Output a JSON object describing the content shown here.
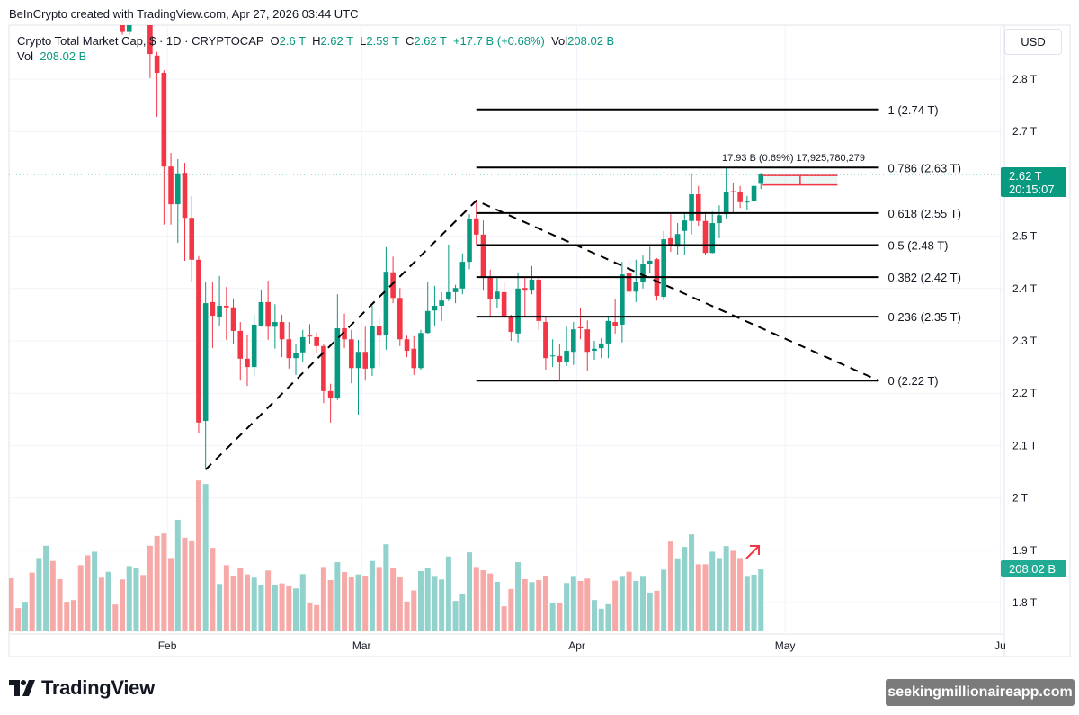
{
  "header": {
    "credit": "BeInCrypto created with TradingView.com, Apr 27, 2026 03:44 UTC"
  },
  "legend": {
    "symbol": "Crypto Total Market Cap, $ · 1D · CRYPTOCAP",
    "o_label": "O",
    "o": "2.6 T",
    "h_label": "H",
    "h": "2.62 T",
    "l_label": "L",
    "l": "2.59 T",
    "c_label": "C",
    "c": "2.62 T",
    "change": "+17.7 B (+0.68%)",
    "vol_label": "Vol",
    "vol": "208.02 B",
    "vol_row_label": "Vol",
    "vol_row_value": "208.02 B"
  },
  "currency": "USD",
  "last_price": {
    "price": "2.62 T",
    "countdown": "20:15:07"
  },
  "last_volume": "208.02 B",
  "measure_annotation": "17.93 B (0.69%) 17,925,780,279",
  "branding": {
    "logo": "TradingView",
    "watermark": "seekingmillionaireapp.com"
  },
  "colors": {
    "up": "#089981",
    "down": "#f23645",
    "vol_up": "#92d2cc",
    "vol_down": "#f7a9a7",
    "grid": "#f0f3fa",
    "fib": "#000000"
  },
  "chart_data": {
    "type": "candlestick",
    "interval": "1D",
    "price_unit": "T",
    "volume_unit": "B",
    "ylim": [
      1.76,
      2.93
    ],
    "grid": true,
    "y_ticks": [
      {
        "label": "2.8 T",
        "value": 2.8
      },
      {
        "label": "2.7 T",
        "value": 2.7
      },
      {
        "label": "2.5 T",
        "value": 2.5
      },
      {
        "label": "2.4 T",
        "value": 2.4
      },
      {
        "label": "2.3 T",
        "value": 2.3
      },
      {
        "label": "2.2 T",
        "value": 2.2
      },
      {
        "label": "2.1 T",
        "value": 2.1
      },
      {
        "label": "2 T",
        "value": 2.0
      },
      {
        "label": "1.9 T",
        "value": 1.9
      },
      {
        "label": "1.8 T",
        "value": 1.8
      }
    ],
    "x_ticks": [
      {
        "label": "Feb",
        "date": "2026-02-01"
      },
      {
        "label": "Mar",
        "date": "2026-03-01"
      },
      {
        "label": "Apr",
        "date": "2026-04-01"
      },
      {
        "label": "May",
        "date": "2026-05-01"
      },
      {
        "label": "Ju",
        "date": "2026-06-01"
      }
    ],
    "columns": [
      "date",
      "open",
      "high",
      "low",
      "close",
      "volume",
      "direction_if_offscreen"
    ],
    "candles": [
      [
        "2026-01-09",
        null,
        null,
        null,
        null,
        178,
        "down"
      ],
      [
        "2026-01-10",
        null,
        null,
        null,
        null,
        78,
        "down"
      ],
      [
        "2026-01-11",
        null,
        null,
        null,
        null,
        99,
        "up"
      ],
      [
        "2026-01-12",
        null,
        null,
        null,
        null,
        197,
        "down"
      ],
      [
        "2026-01-13",
        null,
        null,
        null,
        null,
        246,
        "up"
      ],
      [
        "2026-01-14",
        null,
        null,
        null,
        null,
        287,
        "up"
      ],
      [
        "2026-01-15",
        null,
        null,
        null,
        null,
        236,
        "down"
      ],
      [
        "2026-01-16",
        null,
        null,
        null,
        null,
        175,
        "down"
      ],
      [
        "2026-01-17",
        null,
        null,
        null,
        null,
        99,
        "down"
      ],
      [
        "2026-01-18",
        null,
        null,
        null,
        null,
        105,
        "down"
      ],
      [
        "2026-01-19",
        null,
        null,
        null,
        null,
        222,
        "down"
      ],
      [
        "2026-01-20",
        null,
        null,
        null,
        null,
        255,
        "down"
      ],
      [
        "2026-01-21",
        null,
        null,
        null,
        null,
        267,
        "up"
      ],
      [
        "2026-01-22",
        null,
        null,
        null,
        null,
        180,
        "down"
      ],
      [
        "2026-01-23",
        null,
        null,
        null,
        null,
        200,
        "up"
      ],
      [
        "2026-01-24",
        null,
        null,
        null,
        null,
        90,
        "down"
      ],
      [
        "2026-01-25",
        2.93,
        2.95,
        2.885,
        2.89,
        174
      ],
      [
        "2026-01-26",
        2.89,
        2.95,
        2.885,
        2.93,
        219
      ],
      [
        "2026-01-27",
        2.93,
        2.99,
        2.91,
        2.97,
        212
      ],
      [
        "2026-01-28",
        2.97,
        2.99,
        2.91,
        2.93,
        189
      ],
      [
        "2026-01-29",
        2.93,
        2.94,
        2.802,
        2.848,
        287
      ],
      [
        "2026-01-30",
        2.845,
        2.852,
        2.728,
        2.812,
        320
      ],
      [
        "2026-01-31",
        2.812,
        2.817,
        2.522,
        2.633,
        328
      ],
      [
        "2026-02-01",
        2.633,
        2.659,
        2.522,
        2.561,
        246
      ],
      [
        "2026-02-02",
        2.561,
        2.647,
        2.487,
        2.62,
        374
      ],
      [
        "2026-02-03",
        2.621,
        2.64,
        2.453,
        2.535,
        314
      ],
      [
        "2026-02-04",
        2.535,
        2.577,
        2.413,
        2.455,
        305
      ],
      [
        "2026-02-05",
        2.455,
        2.462,
        2.123,
        2.144,
        506
      ],
      [
        "2026-02-06",
        2.147,
        2.413,
        2.055,
        2.372,
        494
      ],
      [
        "2026-02-07",
        2.374,
        2.412,
        2.286,
        2.348,
        280
      ],
      [
        "2026-02-08",
        2.346,
        2.424,
        2.329,
        2.367,
        159
      ],
      [
        "2026-02-09",
        2.367,
        2.403,
        2.302,
        2.364,
        222
      ],
      [
        "2026-02-10",
        2.364,
        2.381,
        2.293,
        2.319,
        187
      ],
      [
        "2026-02-11",
        2.319,
        2.336,
        2.224,
        2.266,
        213
      ],
      [
        "2026-02-12",
        2.266,
        2.312,
        2.214,
        2.25,
        191
      ],
      [
        "2026-02-13",
        2.25,
        2.35,
        2.233,
        2.331,
        180
      ],
      [
        "2026-02-14",
        2.329,
        2.398,
        2.327,
        2.374,
        155
      ],
      [
        "2026-02-15",
        2.374,
        2.415,
        2.302,
        2.327,
        204
      ],
      [
        "2026-02-16",
        2.327,
        2.37,
        2.285,
        2.336,
        157
      ],
      [
        "2026-02-17",
        2.336,
        2.35,
        2.269,
        2.303,
        161
      ],
      [
        "2026-02-18",
        2.303,
        2.336,
        2.247,
        2.267,
        151
      ],
      [
        "2026-02-19",
        2.267,
        2.293,
        2.235,
        2.276,
        144
      ],
      [
        "2026-02-20",
        2.278,
        2.321,
        2.259,
        2.307,
        192
      ],
      [
        "2026-02-21",
        2.31,
        2.332,
        2.293,
        2.309,
        96
      ],
      [
        "2026-02-22",
        2.307,
        2.316,
        2.276,
        2.29,
        88
      ],
      [
        "2026-02-23",
        2.29,
        2.295,
        2.181,
        2.204,
        216
      ],
      [
        "2026-02-24",
        2.204,
        2.218,
        2.144,
        2.19,
        172
      ],
      [
        "2026-02-25",
        2.19,
        2.389,
        2.187,
        2.324,
        232
      ],
      [
        "2026-02-26",
        2.324,
        2.352,
        2.286,
        2.303,
        199
      ],
      [
        "2026-02-27",
        2.303,
        2.321,
        2.219,
        2.248,
        181
      ],
      [
        "2026-02-28",
        2.248,
        2.302,
        2.159,
        2.279,
        191
      ],
      [
        "2026-03-01",
        2.279,
        2.327,
        2.224,
        2.247,
        185
      ],
      [
        "2026-03-02",
        2.248,
        2.367,
        2.233,
        2.329,
        236
      ],
      [
        "2026-03-03",
        2.329,
        2.345,
        2.252,
        2.31,
        216
      ],
      [
        "2026-03-04",
        2.312,
        2.479,
        2.283,
        2.432,
        292
      ],
      [
        "2026-03-05",
        2.431,
        2.461,
        2.372,
        2.382,
        212
      ],
      [
        "2026-03-06",
        2.382,
        2.401,
        2.29,
        2.303,
        181
      ],
      [
        "2026-03-07",
        2.303,
        2.31,
        2.269,
        2.281,
        100
      ],
      [
        "2026-03-08",
        2.285,
        2.309,
        2.235,
        2.248,
        137
      ],
      [
        "2026-03-09",
        2.248,
        2.321,
        2.245,
        2.315,
        202
      ],
      [
        "2026-03-10",
        2.315,
        2.412,
        2.314,
        2.357,
        214
      ],
      [
        "2026-03-11",
        2.358,
        2.405,
        2.329,
        2.367,
        183
      ],
      [
        "2026-03-12",
        2.367,
        2.393,
        2.338,
        2.377,
        174
      ],
      [
        "2026-03-13",
        2.379,
        2.484,
        2.376,
        2.393,
        251
      ],
      [
        "2026-03-14",
        2.393,
        2.407,
        2.372,
        2.401,
        102
      ],
      [
        "2026-03-15",
        2.4,
        2.467,
        2.389,
        2.451,
        126
      ],
      [
        "2026-03-16",
        2.451,
        2.542,
        2.437,
        2.532,
        265
      ],
      [
        "2026-03-17",
        2.534,
        2.568,
        2.484,
        2.503,
        216
      ],
      [
        "2026-03-18",
        2.503,
        2.53,
        2.396,
        2.422,
        205
      ],
      [
        "2026-03-19",
        2.422,
        2.436,
        2.346,
        2.379,
        194
      ],
      [
        "2026-03-20",
        2.379,
        2.42,
        2.362,
        2.394,
        166
      ],
      [
        "2026-03-21",
        2.393,
        2.412,
        2.343,
        2.346,
        84
      ],
      [
        "2026-03-22",
        2.346,
        2.35,
        2.3,
        2.317,
        142
      ],
      [
        "2026-03-23",
        2.314,
        2.431,
        2.297,
        2.4,
        232
      ],
      [
        "2026-03-24",
        2.401,
        2.422,
        2.346,
        2.396,
        175
      ],
      [
        "2026-03-25",
        2.396,
        2.443,
        2.389,
        2.417,
        165
      ],
      [
        "2026-03-26",
        2.417,
        2.422,
        2.321,
        2.338,
        172
      ],
      [
        "2026-03-27",
        2.336,
        2.346,
        2.245,
        2.267,
        186
      ],
      [
        "2026-03-28",
        2.271,
        2.303,
        2.25,
        2.272,
        96
      ],
      [
        "2026-03-29",
        2.271,
        2.293,
        2.224,
        2.259,
        94
      ],
      [
        "2026-03-30",
        2.259,
        2.327,
        2.252,
        2.281,
        162
      ],
      [
        "2026-03-31",
        2.279,
        2.336,
        2.254,
        2.322,
        183
      ],
      [
        "2026-04-01",
        2.326,
        2.362,
        2.303,
        2.324,
        169
      ],
      [
        "2026-04-02",
        2.322,
        2.339,
        2.243,
        2.279,
        177
      ],
      [
        "2026-04-03",
        2.281,
        2.3,
        2.264,
        2.285,
        105
      ],
      [
        "2026-04-04",
        2.286,
        2.305,
        2.267,
        2.295,
        76
      ],
      [
        "2026-04-05",
        2.295,
        2.345,
        2.267,
        2.338,
        91
      ],
      [
        "2026-04-06",
        2.336,
        2.379,
        2.314,
        2.329,
        170
      ],
      [
        "2026-04-07",
        2.331,
        2.451,
        2.297,
        2.427,
        183
      ],
      [
        "2026-04-08",
        2.429,
        2.455,
        2.384,
        2.394,
        200
      ],
      [
        "2026-04-09",
        2.394,
        2.455,
        2.374,
        2.413,
        169
      ],
      [
        "2026-04-10",
        2.413,
        2.463,
        2.4,
        2.446,
        183
      ],
      [
        "2026-04-11",
        2.446,
        2.48,
        2.429,
        2.453,
        130
      ],
      [
        "2026-04-12",
        2.456,
        2.458,
        2.377,
        2.386,
        136
      ],
      [
        "2026-04-13",
        2.384,
        2.51,
        2.377,
        2.494,
        207
      ],
      [
        "2026-04-14",
        2.496,
        2.542,
        2.47,
        2.482,
        301
      ],
      [
        "2026-04-15",
        2.48,
        2.525,
        2.465,
        2.504,
        245
      ],
      [
        "2026-04-16",
        2.51,
        2.544,
        2.465,
        2.53,
        283
      ],
      [
        "2026-04-17",
        2.529,
        2.62,
        2.503,
        2.58,
        325
      ],
      [
        "2026-04-18",
        2.58,
        2.596,
        2.52,
        2.529,
        225
      ],
      [
        "2026-04-19",
        2.529,
        2.546,
        2.465,
        2.468,
        225
      ],
      [
        "2026-04-20",
        2.468,
        2.547,
        2.467,
        2.525,
        267
      ],
      [
        "2026-04-21",
        2.525,
        2.559,
        2.496,
        2.54,
        246
      ],
      [
        "2026-04-22",
        2.542,
        2.63,
        2.534,
        2.585,
        286
      ],
      [
        "2026-04-23",
        2.586,
        2.601,
        2.544,
        2.584,
        270
      ],
      [
        "2026-04-24",
        2.584,
        2.596,
        2.554,
        2.565,
        246
      ],
      [
        "2026-04-25",
        2.565,
        2.577,
        2.551,
        2.566,
        183
      ],
      [
        "2026-04-26",
        2.568,
        2.608,
        2.558,
        2.596,
        190
      ],
      [
        "2026-04-27",
        2.6,
        2.621,
        2.59,
        2.618,
        208.02
      ]
    ],
    "last_close": 2.618,
    "fibonacci": {
      "start_date": "2026-03-17",
      "end_date": "2026-05-14",
      "low": 2.224,
      "high": 2.742,
      "levels": [
        {
          "ratio": 1,
          "label": "1 (2.74 T)"
        },
        {
          "ratio": 0.786,
          "label": "0.786 (2.63 T)"
        },
        {
          "ratio": 0.618,
          "label": "0.618 (2.55 T)"
        },
        {
          "ratio": 0.5,
          "label": "0.5 (2.48 T)"
        },
        {
          "ratio": 0.382,
          "label": "0.382 (2.42 T)"
        },
        {
          "ratio": 0.236,
          "label": "0.236 (2.35 T)"
        },
        {
          "ratio": 0,
          "label": "0 (2.22 T)"
        }
      ]
    },
    "trend_path": [
      {
        "date": "2026-02-06",
        "price": 2.054
      },
      {
        "date": "2026-03-17",
        "price": 2.568
      },
      {
        "date": "2026-05-14",
        "price": 2.224
      }
    ],
    "range_box": {
      "start_date": "2026-04-27",
      "end_date": "2026-05-07",
      "top": 2.616,
      "bottom": 2.598
    }
  }
}
